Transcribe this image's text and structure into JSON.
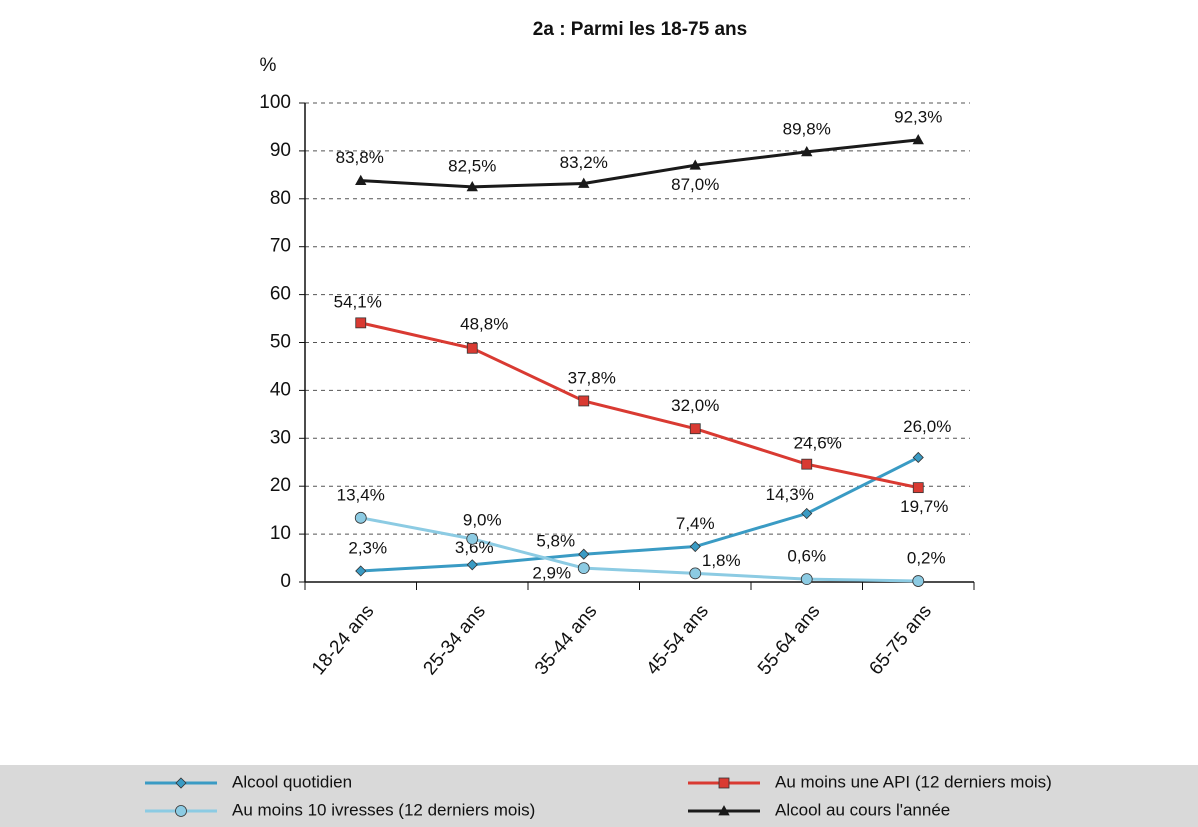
{
  "chart_data": {
    "type": "line",
    "title": "2a : Parmi les 18-75 ans",
    "y_unit": "%",
    "categories": [
      "18-24 ans",
      "25-34 ans",
      "35-44 ans",
      "45-54 ans",
      "55-64 ans",
      "65-75 ans"
    ],
    "ylim": [
      0,
      100
    ],
    "yticks": [
      0,
      10,
      20,
      30,
      40,
      50,
      60,
      70,
      80,
      90,
      100
    ],
    "grid": true,
    "legend": "bottom",
    "series": [
      {
        "name": "Alcool quotidien",
        "color": "#3a9bc4",
        "marker": "diamond",
        "values": [
          2.3,
          3.6,
          5.8,
          7.4,
          14.3,
          26.0
        ],
        "value_labels": [
          "2,3%",
          "3,6%",
          "5,8%",
          "7,4%",
          "14,3%",
          "26,0%"
        ]
      },
      {
        "name": "Au moins une API (12 derniers mois)",
        "color": "#d93a32",
        "marker": "square",
        "values": [
          54.1,
          48.8,
          37.8,
          32.0,
          24.6,
          19.7
        ],
        "value_labels": [
          "54,1%",
          "48,8%",
          "37,8%",
          "32,0%",
          "24,6%",
          "19,7%"
        ]
      },
      {
        "name": "Au moins 10 ivresses (12 derniers mois)",
        "color": "#8ccbe3",
        "marker": "circle",
        "values": [
          13.4,
          9.0,
          2.9,
          1.8,
          0.6,
          0.2
        ],
        "value_labels": [
          "13,4%",
          "9,0%",
          "2,9%",
          "1,8%",
          "0,6%",
          "0,2%"
        ]
      },
      {
        "name": "Alcool au cours l'année",
        "color": "#1a1a1a",
        "marker": "triangle",
        "values": [
          83.8,
          82.5,
          83.2,
          87.0,
          89.8,
          92.3
        ],
        "value_labels": [
          "83,8%",
          "82,5%",
          "83,2%",
          "87,0%",
          "89,8%",
          "92,3%"
        ]
      }
    ]
  }
}
